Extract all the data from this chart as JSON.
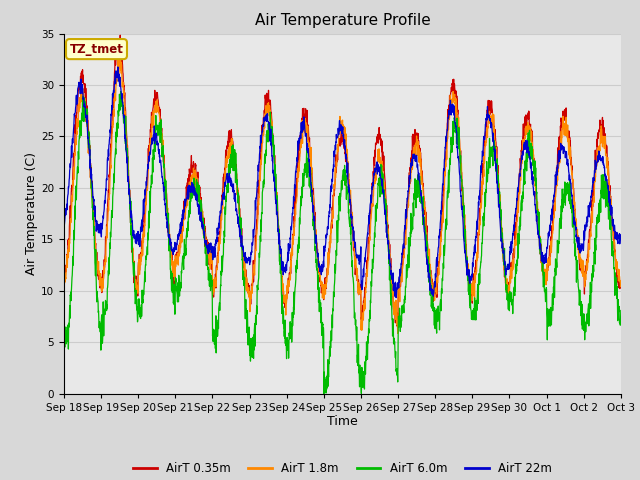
{
  "title": "Air Temperature Profile",
  "xlabel": "Time",
  "ylabel": "Air Temperature (C)",
  "ylim": [
    0,
    35
  ],
  "annotation_text": "TZ_tmet",
  "annotation_bg": "#ffffcc",
  "annotation_border": "#ccaa00",
  "annotation_text_color": "#880000",
  "grid_color": "#cccccc",
  "fig_bg": "#d8d8d8",
  "plot_bg": "#e8e8e8",
  "legend_labels": [
    "AirT 0.35m",
    "AirT 1.8m",
    "AirT 6.0m",
    "AirT 22m"
  ],
  "colors": [
    "#cc0000",
    "#ff8800",
    "#00bb00",
    "#0000cc"
  ],
  "tick_labels": [
    "Sep 18",
    "Sep 19",
    "Sep 20",
    "Sep 21",
    "Sep 22",
    "Sep 23",
    "Sep 24",
    "Sep 25",
    "Sep 26",
    "Sep 27",
    "Sep 28",
    "Sep 29",
    "Sep 30",
    "Oct 1",
    "Oct 2",
    "Oct 3"
  ],
  "yticks": [
    0,
    5,
    10,
    15,
    20,
    25,
    30,
    35
  ],
  "title_fontsize": 11,
  "axis_label_fontsize": 9,
  "tick_fontsize": 7.5
}
